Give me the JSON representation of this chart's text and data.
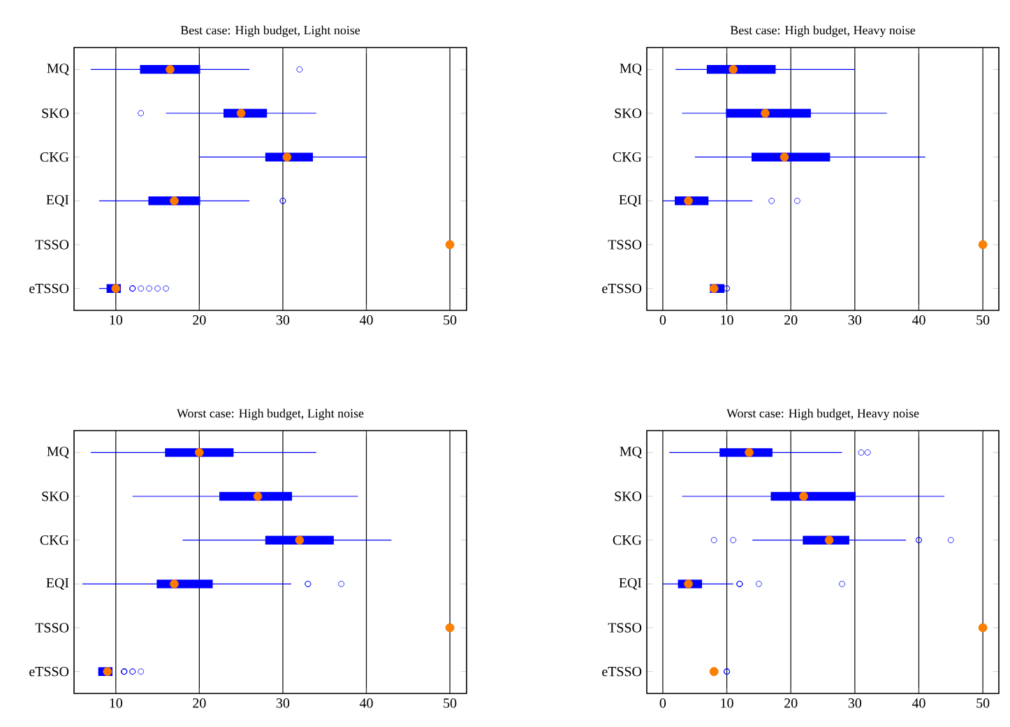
{
  "chart_data": [
    {
      "type": "box",
      "orientation": "horizontal",
      "title": "Best case: High budget, Light noise",
      "categories": [
        "MQ",
        "SKO",
        "CKG",
        "EQI",
        "TSSO",
        "eTSSO"
      ],
      "color": "#0000ff",
      "grid": "x",
      "xlim": [
        5,
        52
      ],
      "xticks": [
        10,
        20,
        30,
        40,
        50
      ],
      "boxes": [
        {
          "low": 7,
          "q1": 13,
          "median": 16.5,
          "q3": 20,
          "high": 26,
          "outliers": [
            32
          ]
        },
        {
          "low": 16,
          "q1": 23,
          "median": 25,
          "q3": 28,
          "high": 34,
          "outliers": [
            13
          ]
        },
        {
          "low": 20,
          "q1": 28,
          "median": 30.5,
          "q3": 33.5,
          "high": 40
        },
        {
          "low": 8,
          "q1": 14,
          "median": 17,
          "q3": 20,
          "high": 26,
          "outliers": [
            30,
            30
          ]
        },
        null,
        {
          "low": 8,
          "q1": 9,
          "median": 10,
          "q3": 10.5,
          "high": 10.5,
          "outliers": [
            12,
            12,
            12,
            13,
            14,
            15,
            16
          ]
        }
      ],
      "series": [
        {
          "type": "scatter",
          "x": [
            "TSSO"
          ],
          "values": [
            50
          ],
          "color": "#ff8000"
        }
      ]
    },
    {
      "type": "box",
      "orientation": "horizontal",
      "title": "Best case: High budget, Heavy noise",
      "categories": [
        "MQ",
        "SKO",
        "CKG",
        "EQI",
        "TSSO",
        "eTSSO"
      ],
      "color": "#0000ff",
      "grid": "x",
      "xlim": [
        -2.5,
        52.5
      ],
      "xticks": [
        0,
        10,
        20,
        30,
        40,
        50
      ],
      "boxes": [
        {
          "low": 2,
          "q1": 7,
          "median": 11,
          "q3": 17.5,
          "high": 30
        },
        {
          "low": 3,
          "q1": 10,
          "median": 16,
          "q3": 23,
          "high": 35
        },
        {
          "low": 5,
          "q1": 14,
          "median": 19,
          "q3": 26,
          "high": 41
        },
        {
          "low": 0,
          "q1": 2,
          "median": 4,
          "q3": 7,
          "high": 14,
          "outliers": [
            17,
            21
          ]
        },
        null,
        {
          "low": 7.5,
          "q1": 7.5,
          "median": 8,
          "q3": 9.5,
          "high": 9.5,
          "outliers": [
            10,
            10
          ]
        }
      ],
      "series": [
        {
          "type": "scatter",
          "x": [
            "TSSO"
          ],
          "values": [
            50
          ],
          "color": "#ff8000"
        }
      ]
    },
    {
      "type": "box",
      "orientation": "horizontal",
      "title": "Worst case: High budget, Light noise",
      "categories": [
        "MQ",
        "SKO",
        "CKG",
        "EQI",
        "TSSO",
        "eTSSO"
      ],
      "color": "#0000ff",
      "grid": "x",
      "xlim": [
        5,
        52
      ],
      "xticks": [
        10,
        20,
        30,
        40,
        50
      ],
      "boxes": [
        {
          "low": 7,
          "q1": 16,
          "median": 20,
          "q3": 24,
          "high": 34
        },
        {
          "low": 12,
          "q1": 22.5,
          "median": 27,
          "q3": 31,
          "high": 39
        },
        {
          "low": 18,
          "q1": 28,
          "median": 32,
          "q3": 36,
          "high": 43
        },
        {
          "low": 6,
          "q1": 15,
          "median": 17,
          "q3": 21.5,
          "high": 31,
          "outliers": [
            33,
            33,
            37
          ]
        },
        null,
        {
          "low": 8,
          "q1": 8,
          "median": 9,
          "q3": 9.5,
          "high": 9.5,
          "outliers": [
            11,
            11,
            11,
            11,
            12,
            12,
            13
          ]
        }
      ],
      "series": [
        {
          "type": "scatter",
          "x": [
            "TSSO"
          ],
          "values": [
            50
          ],
          "color": "#ff8000"
        }
      ]
    },
    {
      "type": "box",
      "orientation": "horizontal",
      "title": "Worst case: High budget, Heavy noise",
      "categories": [
        "MQ",
        "SKO",
        "CKG",
        "EQI",
        "TSSO",
        "eTSSO"
      ],
      "color": "#0000ff",
      "grid": "x",
      "xlim": [
        -2.5,
        52.5
      ],
      "xticks": [
        0,
        10,
        20,
        30,
        40,
        50
      ],
      "boxes": [
        {
          "low": 1,
          "q1": 9,
          "median": 13.5,
          "q3": 17,
          "high": 28,
          "outliers": [
            31,
            32
          ]
        },
        {
          "low": 3,
          "q1": 17,
          "median": 22,
          "q3": 30,
          "high": 44
        },
        {
          "low": 14,
          "q1": 22,
          "median": 26,
          "q3": 29,
          "high": 38,
          "outliers": [
            8,
            11,
            40,
            40,
            45
          ]
        },
        {
          "low": 0,
          "q1": 2.5,
          "median": 4,
          "q3": 6,
          "high": 11,
          "outliers": [
            12,
            12,
            12,
            15,
            28
          ]
        },
        null,
        null
      ],
      "series": [
        {
          "type": "scatter",
          "x": [
            "TSSO",
            "eTSSO"
          ],
          "values": [
            50,
            8
          ],
          "color": "#ff8000"
        },
        {
          "type": "scatter",
          "x": [
            "eTSSO",
            "eTSSO",
            "eTSSO"
          ],
          "values": [
            10,
            10,
            10
          ],
          "color": "#0000ff"
        }
      ]
    }
  ]
}
